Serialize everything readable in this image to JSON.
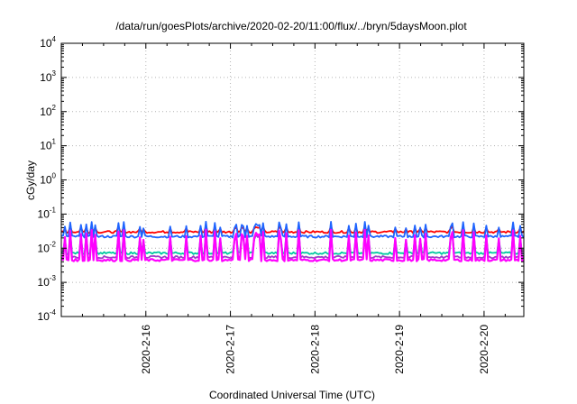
{
  "chart_data": {
    "type": "line",
    "title": "/data/run/goesPlots/archive/2020-02-20/11:00/flux/../bryn/5daysMoon.plot",
    "xlabel": "Coordinated Universal Time (UTC)",
    "ylabel": "cGy/day",
    "yscale": "log",
    "ylim": [
      0.0001,
      10000
    ],
    "xlim": [
      15.0,
      20.47
    ],
    "grid": true,
    "y_ticks": [
      {
        "base": "10",
        "exp": "4",
        "value": 10000
      },
      {
        "base": "10",
        "exp": "3",
        "value": 1000
      },
      {
        "base": "10",
        "exp": "2",
        "value": 100
      },
      {
        "base": "10",
        "exp": "1",
        "value": 10
      },
      {
        "base": "10",
        "exp": "0",
        "value": 1
      },
      {
        "base": "10",
        "exp": "-1",
        "value": 0.1
      },
      {
        "base": "10",
        "exp": "-2",
        "value": 0.01
      },
      {
        "base": "10",
        "exp": "-3",
        "value": 0.001
      },
      {
        "base": "10",
        "exp": "-4",
        "value": 0.0001
      }
    ],
    "x_ticks": [
      {
        "label": "2020-2-16",
        "value": 16
      },
      {
        "label": "2020-2-17",
        "value": 17
      },
      {
        "label": "2020-2-18",
        "value": 18
      },
      {
        "label": "2020-2-19",
        "value": 19
      },
      {
        "label": "2020-2-20",
        "value": 20
      }
    ],
    "series": [
      {
        "color": "#ff0000",
        "base": 0.03,
        "spike": 0.045
      },
      {
        "color": "#1e64ff",
        "base": 0.022,
        "spike": 0.06
      },
      {
        "color": "#00c8a0",
        "base": 0.0072,
        "spike": 0.03
      },
      {
        "color": "#a03cc8",
        "base": 0.0055,
        "spike": 0.03
      },
      {
        "color": "#ff00ff",
        "base": 0.0045,
        "spike": 0.035
      }
    ]
  }
}
